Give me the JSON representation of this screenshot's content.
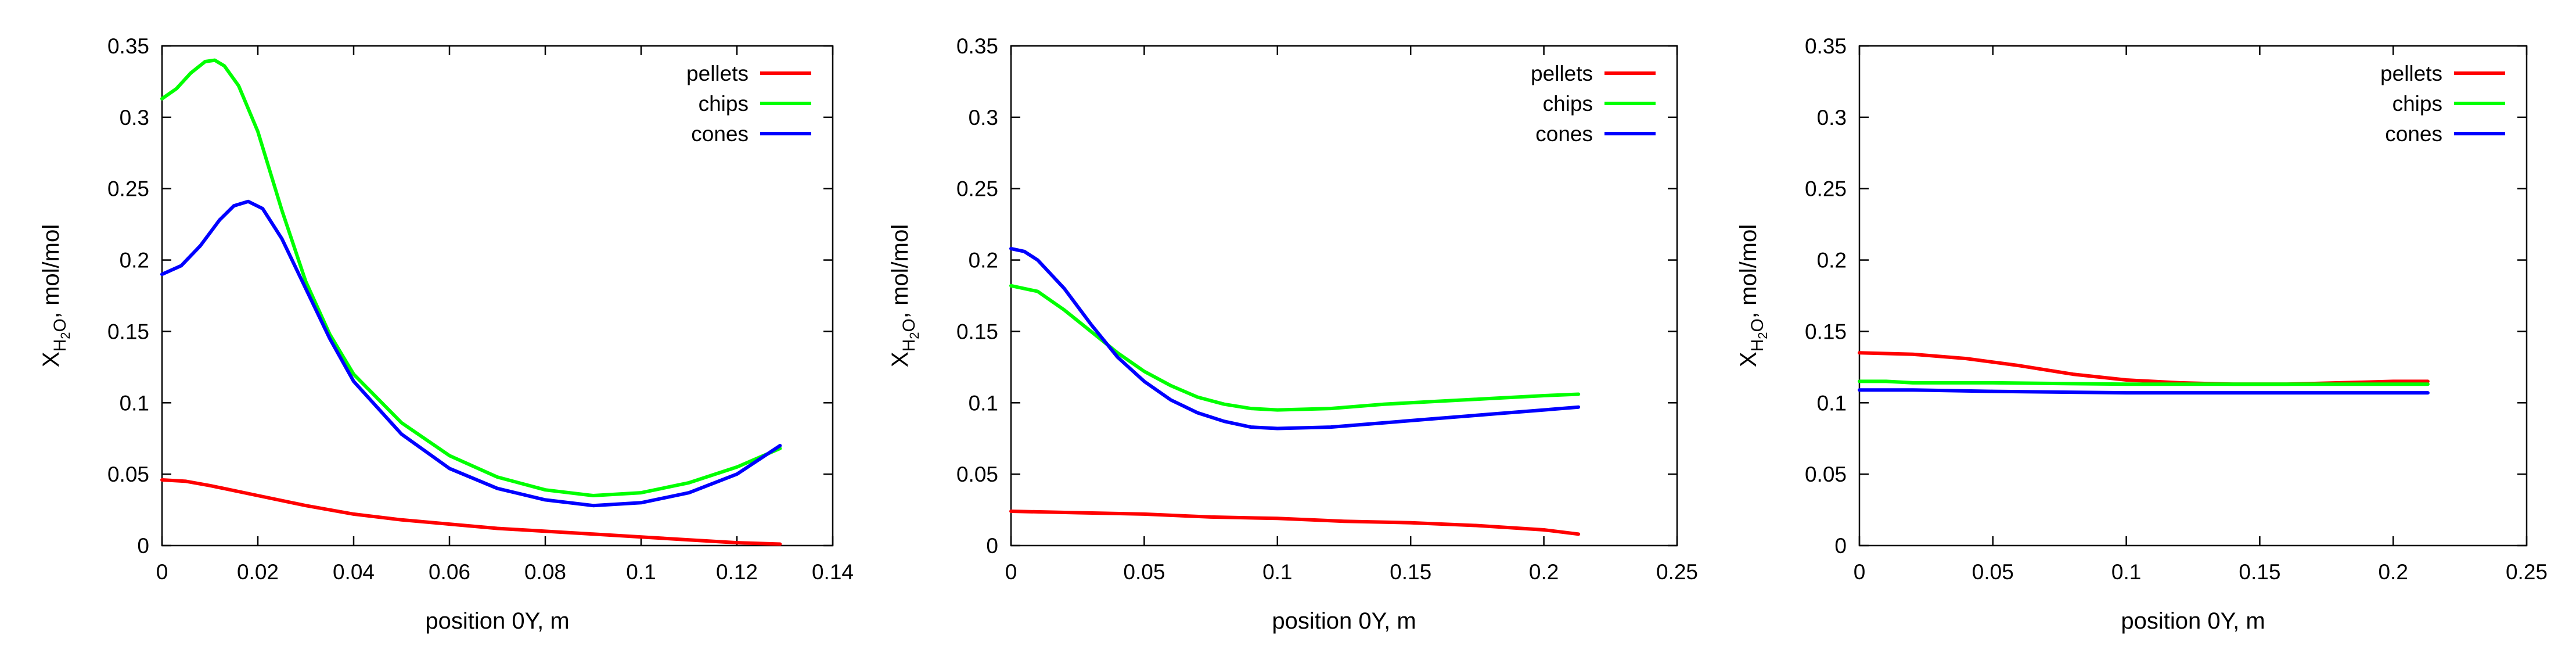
{
  "chart_data": [
    {
      "type": "line",
      "title": "",
      "xlabel": "position 0Y, m",
      "ylabel": "X_{H2O}, mol/mol",
      "ylabel_parts": {
        "main": "X",
        "sub": "H",
        "sub2": "2",
        "sub3": "O",
        "rest": ", mol/mol"
      },
      "xlim": [
        0,
        0.14
      ],
      "ylim": [
        0,
        0.35
      ],
      "xticks": [
        0,
        0.02,
        0.04,
        0.06,
        0.08,
        0.1,
        0.12,
        0.14
      ],
      "xtick_labels": [
        "0",
        "0.02",
        "0.04",
        "0.06",
        "0.08",
        "0.1",
        "0.12",
        "0.14"
      ],
      "yticks": [
        0,
        0.05,
        0.1,
        0.15,
        0.2,
        0.25,
        0.3,
        0.35
      ],
      "ytick_labels": [
        "0",
        "0.05",
        "0.1",
        "0.15",
        "0.2",
        "0.25",
        "0.3",
        "0.35"
      ],
      "grid": false,
      "legend_position": "top-right",
      "series": [
        {
          "name": "pellets",
          "color": "#ff0000",
          "x": [
            0,
            0.005,
            0.01,
            0.02,
            0.03,
            0.04,
            0.05,
            0.06,
            0.07,
            0.08,
            0.09,
            0.1,
            0.11,
            0.12,
            0.129
          ],
          "y": [
            0.046,
            0.045,
            0.042,
            0.035,
            0.028,
            0.022,
            0.018,
            0.015,
            0.012,
            0.01,
            0.008,
            0.006,
            0.004,
            0.002,
            0.001
          ]
        },
        {
          "name": "chips",
          "color": "#00ff00",
          "x": [
            0,
            0.003,
            0.006,
            0.009,
            0.011,
            0.013,
            0.016,
            0.02,
            0.025,
            0.03,
            0.035,
            0.04,
            0.05,
            0.06,
            0.07,
            0.08,
            0.09,
            0.1,
            0.11,
            0.12,
            0.129
          ],
          "y": [
            0.313,
            0.32,
            0.331,
            0.339,
            0.34,
            0.336,
            0.322,
            0.29,
            0.235,
            0.185,
            0.148,
            0.12,
            0.086,
            0.063,
            0.048,
            0.039,
            0.035,
            0.037,
            0.044,
            0.055,
            0.068
          ]
        },
        {
          "name": "cones",
          "color": "#0000ff",
          "x": [
            0,
            0.004,
            0.008,
            0.012,
            0.015,
            0.018,
            0.021,
            0.025,
            0.03,
            0.035,
            0.04,
            0.05,
            0.06,
            0.07,
            0.08,
            0.09,
            0.1,
            0.11,
            0.12,
            0.129
          ],
          "y": [
            0.19,
            0.196,
            0.21,
            0.228,
            0.238,
            0.241,
            0.236,
            0.215,
            0.18,
            0.145,
            0.115,
            0.078,
            0.054,
            0.04,
            0.032,
            0.028,
            0.03,
            0.037,
            0.05,
            0.07
          ]
        }
      ]
    },
    {
      "type": "line",
      "title": "",
      "xlabel": "position 0Y, m",
      "ylabel": "X_{H2O}, mol/mol",
      "ylabel_parts": {
        "main": "X",
        "sub": "H",
        "sub2": "2",
        "sub3": "O",
        "rest": ", mol/mol"
      },
      "xlim": [
        0,
        0.25
      ],
      "ylim": [
        0,
        0.35
      ],
      "xticks": [
        0,
        0.05,
        0.1,
        0.15,
        0.2,
        0.25
      ],
      "xtick_labels": [
        "0",
        "0.05",
        "0.1",
        "0.15",
        "0.2",
        "0.25"
      ],
      "yticks": [
        0,
        0.05,
        0.1,
        0.15,
        0.2,
        0.25,
        0.3,
        0.35
      ],
      "ytick_labels": [
        "0",
        "0.05",
        "0.1",
        "0.15",
        "0.2",
        "0.25",
        "0.3",
        "0.35"
      ],
      "grid": false,
      "legend_position": "top-right",
      "series": [
        {
          "name": "pellets",
          "color": "#ff0000",
          "x": [
            0,
            0.025,
            0.05,
            0.075,
            0.1,
            0.125,
            0.15,
            0.175,
            0.2,
            0.213
          ],
          "y": [
            0.024,
            0.023,
            0.022,
            0.02,
            0.019,
            0.017,
            0.016,
            0.014,
            0.011,
            0.008
          ]
        },
        {
          "name": "chips",
          "color": "#00ff00",
          "x": [
            0,
            0.01,
            0.02,
            0.03,
            0.04,
            0.05,
            0.06,
            0.07,
            0.08,
            0.09,
            0.1,
            0.12,
            0.14,
            0.16,
            0.18,
            0.2,
            0.213
          ],
          "y": [
            0.182,
            0.178,
            0.165,
            0.15,
            0.135,
            0.122,
            0.112,
            0.104,
            0.099,
            0.096,
            0.095,
            0.096,
            0.099,
            0.101,
            0.103,
            0.105,
            0.106
          ]
        },
        {
          "name": "cones",
          "color": "#0000ff",
          "x": [
            0,
            0.005,
            0.01,
            0.02,
            0.03,
            0.04,
            0.05,
            0.06,
            0.07,
            0.08,
            0.09,
            0.1,
            0.12,
            0.14,
            0.16,
            0.18,
            0.2,
            0.213
          ],
          "y": [
            0.208,
            0.206,
            0.2,
            0.18,
            0.155,
            0.132,
            0.115,
            0.102,
            0.093,
            0.087,
            0.083,
            0.082,
            0.083,
            0.086,
            0.089,
            0.092,
            0.095,
            0.097
          ]
        }
      ]
    },
    {
      "type": "line",
      "title": "",
      "xlabel": "position 0Y, m",
      "ylabel": "X_{H2O}, mol/mol",
      "ylabel_parts": {
        "main": "X",
        "sub": "H",
        "sub2": "2",
        "sub3": "O",
        "rest": ", mol/mol"
      },
      "xlim": [
        0,
        0.25
      ],
      "ylim": [
        0,
        0.35
      ],
      "xticks": [
        0,
        0.05,
        0.1,
        0.15,
        0.2,
        0.25
      ],
      "xtick_labels": [
        "0",
        "0.05",
        "0.1",
        "0.15",
        "0.2",
        "0.25"
      ],
      "yticks": [
        0,
        0.05,
        0.1,
        0.15,
        0.2,
        0.25,
        0.3,
        0.35
      ],
      "ytick_labels": [
        "0",
        "0.05",
        "0.1",
        "0.15",
        "0.2",
        "0.25",
        "0.3",
        "0.35"
      ],
      "grid": false,
      "legend_position": "top-right",
      "series": [
        {
          "name": "pellets",
          "color": "#ff0000",
          "x": [
            0,
            0.02,
            0.04,
            0.06,
            0.08,
            0.1,
            0.12,
            0.14,
            0.16,
            0.18,
            0.2,
            0.213
          ],
          "y": [
            0.135,
            0.134,
            0.131,
            0.126,
            0.12,
            0.116,
            0.114,
            0.113,
            0.113,
            0.114,
            0.115,
            0.115
          ]
        },
        {
          "name": "chips",
          "color": "#00ff00",
          "x": [
            0,
            0.01,
            0.02,
            0.05,
            0.1,
            0.15,
            0.2,
            0.213
          ],
          "y": [
            0.115,
            0.115,
            0.114,
            0.114,
            0.113,
            0.113,
            0.113,
            0.113
          ]
        },
        {
          "name": "cones",
          "color": "#0000ff",
          "x": [
            0,
            0.02,
            0.05,
            0.1,
            0.15,
            0.2,
            0.213
          ],
          "y": [
            0.109,
            0.109,
            0.108,
            0.107,
            0.107,
            0.107,
            0.107
          ]
        }
      ]
    }
  ]
}
